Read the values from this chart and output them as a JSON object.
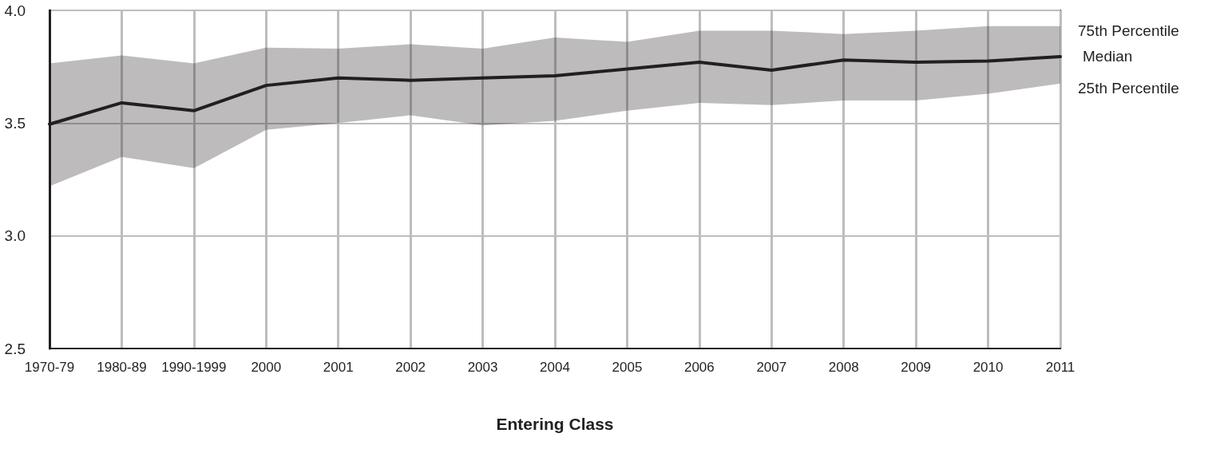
{
  "chart_data": {
    "type": "line",
    "xlabel": "Entering Class",
    "categories": [
      "1970-79",
      "1980-89",
      "1990-1999",
      "2000",
      "2001",
      "2002",
      "2003",
      "2004",
      "2005",
      "2006",
      "2007",
      "2008",
      "2009",
      "2010",
      "2011"
    ],
    "series": [
      {
        "name": "Median",
        "color": "#231f20",
        "values": [
          3.495,
          3.59,
          3.555,
          3.667,
          3.7,
          3.69,
          3.7,
          3.71,
          3.74,
          3.77,
          3.735,
          3.78,
          3.77,
          3.775,
          3.795
        ],
        "upper": [
          3.765,
          3.8,
          3.765,
          3.835,
          3.83,
          3.85,
          3.83,
          3.88,
          3.86,
          3.91,
          3.91,
          3.895,
          3.91,
          3.93,
          3.93
        ],
        "lower": [
          3.22,
          3.35,
          3.3,
          3.47,
          3.5,
          3.535,
          3.49,
          3.51,
          3.555,
          3.59,
          3.58,
          3.6,
          3.6,
          3.63,
          3.675
        ]
      }
    ],
    "annotations": [
      {
        "text": "75th Percentile",
        "x": "2011",
        "y": 3.93
      },
      {
        "text": "25th Percentile",
        "x": "2011",
        "y": 3.675
      }
    ],
    "ylim": [
      2.5,
      4.0
    ],
    "yticks": [
      {
        "value": 2.5,
        "label": "2.5"
      },
      {
        "value": 3,
        "label": "3.0"
      },
      {
        "value": 3.5,
        "label": "3.5"
      },
      {
        "value": 4,
        "label": "4.0"
      }
    ],
    "grid": true,
    "legend": false,
    "marker": "none",
    "line_style": "solid"
  }
}
